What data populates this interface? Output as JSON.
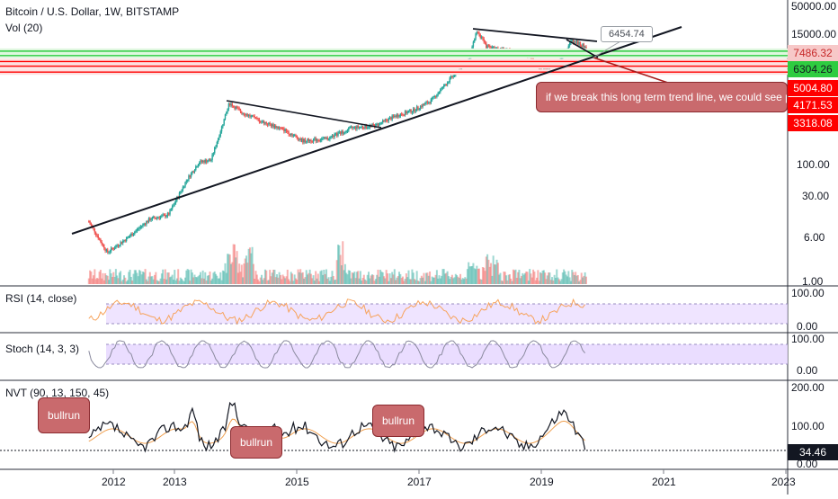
{
  "header": {
    "title": "Bitcoin / U.S. Dollar, 1W, BITSTAMP",
    "volume_label": "Vol (20)"
  },
  "colors": {
    "up": "#26a69a",
    "down": "#ef5350",
    "support_green": "#2ecc40",
    "resistance_red": "#ff0000",
    "rsi_line": "#f7a35c",
    "stoch_line": "#8a8a9e",
    "nvt_line": "#131722",
    "nvt_ma": "#f0a050",
    "band_fill": "#e8d9ff"
  },
  "price_axis": {
    "ticks": [
      "50000.00",
      "15000.00",
      "100.00",
      "30.00",
      "6.00",
      "1.00"
    ],
    "tags": [
      {
        "text": "7486.32",
        "style": "light"
      },
      {
        "text": "6304.26",
        "style": "green"
      },
      {
        "text": "5004.80",
        "style": "red"
      },
      {
        "text": "4171.53",
        "style": "red"
      },
      {
        "text": "3318.08",
        "style": "red"
      }
    ],
    "callout_price": "6454.74"
  },
  "annotations": {
    "trend_note": "if we break this long term trend line, we could see pa",
    "bullrun_1": "bullrun",
    "bullrun_2": "bullrun",
    "bullrun_3": "bullrun"
  },
  "indicators": {
    "rsi": {
      "label": "RSI (14, close)",
      "ticks": [
        "100.00",
        "0.00"
      ]
    },
    "stoch": {
      "label": "Stoch (14, 3, 3)",
      "ticks": [
        "100.00",
        "0.00"
      ]
    },
    "nvt": {
      "label": "NVT (90, 13, 150, 45)",
      "ticks": [
        "200.00",
        "100.00",
        "0.00"
      ],
      "current": "34.46"
    }
  },
  "time_axis": {
    "ticks": [
      "2012",
      "2013",
      "2015",
      "2017",
      "2019",
      "2021",
      "2023"
    ]
  },
  "chart_data": {
    "type": "line",
    "title": "Bitcoin / U.S. Dollar, 1W, BITSTAMP",
    "y_scale": "log",
    "ylim": [
      1,
      50000
    ],
    "series": [
      {
        "name": "Bitcoin / U.S. Dollar",
        "x": [
          2011.6,
          2011.9,
          2012.2,
          2012.6,
          2012.9,
          2013.2,
          2013.4,
          2013.6,
          2013.9,
          2014.1,
          2014.4,
          2014.8,
          2015.1,
          2015.5,
          2015.9,
          2016.3,
          2016.6,
          2016.9,
          2017.2,
          2017.5,
          2017.8,
          2017.95,
          2018.1,
          2018.4,
          2018.8,
          2019.0,
          2019.3,
          2019.5,
          2019.75
        ],
        "y": [
          10,
          3,
          5,
          11,
          13,
          50,
          100,
          110,
          1000,
          700,
          500,
          350,
          230,
          250,
          380,
          420,
          600,
          750,
          1100,
          2500,
          5000,
          17000,
          9000,
          8000,
          6300,
          3500,
          5000,
          11500,
          8500
        ]
      }
    ],
    "horizontal_levels": [
      {
        "value": 7486.32,
        "color": "green"
      },
      {
        "value": 6304.26,
        "color": "green"
      },
      {
        "value": 5004.8,
        "color": "red"
      },
      {
        "value": 4171.53,
        "color": "red"
      },
      {
        "value": 3318.08,
        "color": "red"
      }
    ]
  }
}
